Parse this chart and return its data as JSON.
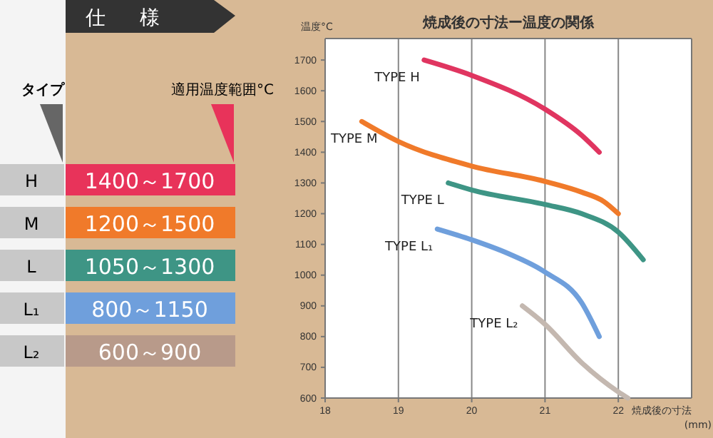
{
  "chart_data": [
    {
      "type": "other",
      "title": "仕様",
      "categories": [
        "1400～1700",
        "1200～1500",
        "1050～1300",
        "800～1150",
        "600～900"
      ],
      "value_labels": [
        "H",
        "M",
        "L",
        "L₁",
        "L₂"
      ],
      "colors": [
        "#e8335a",
        "#f07a2a",
        "#3e9585",
        "#6f9fdc",
        "#b89a8a"
      ],
      "annotations": [
        "タイプ",
        "適用温度範囲°C"
      ]
    },
    {
      "type": "line",
      "title": "焼成後の寸法ー温度の関係",
      "xlabel": "焼成後の寸法\n(mm)",
      "ylabel": "温度°C",
      "xlim": [
        18,
        23
      ],
      "ylim": [
        600,
        1770
      ],
      "xticks": [
        18,
        19,
        20,
        21,
        22
      ],
      "yticks": [
        600,
        700,
        800,
        900,
        1000,
        1100,
        1200,
        1300,
        1400,
        1500,
        1600,
        1700
      ],
      "grid": "x",
      "marker": "none",
      "line_style": "solid",
      "series": [
        {
          "name": "TYPE H",
          "color": "#e03560",
          "x": [
            19.35,
            20,
            21,
            21.5,
            21.74
          ],
          "values": [
            1700,
            1650,
            1540,
            1455,
            1400
          ]
        },
        {
          "name": "TYPE M",
          "color": "#f07a2a",
          "x": [
            18.5,
            19,
            20,
            21,
            21.5,
            21.8,
            22
          ],
          "values": [
            1500,
            1435,
            1355,
            1305,
            1270,
            1240,
            1200
          ]
        },
        {
          "name": "TYPE L",
          "color": "#3e9585",
          "x": [
            19.68,
            20,
            21,
            21.5,
            22,
            22.34
          ],
          "values": [
            1300,
            1277,
            1230,
            1200,
            1140,
            1050
          ]
        },
        {
          "name": "TYPE L₁",
          "color": "#6f9fdc",
          "x": [
            19.53,
            20,
            20.5,
            21,
            21.5,
            21.74
          ],
          "values": [
            1150,
            1115,
            1070,
            1010,
            910,
            800
          ]
        },
        {
          "name": "TYPE L₂",
          "color": "#c4b8b0",
          "x": [
            20.69,
            21,
            21.5,
            22,
            22.13
          ],
          "values": [
            900,
            840,
            715,
            620,
            600
          ]
        }
      ]
    }
  ]
}
